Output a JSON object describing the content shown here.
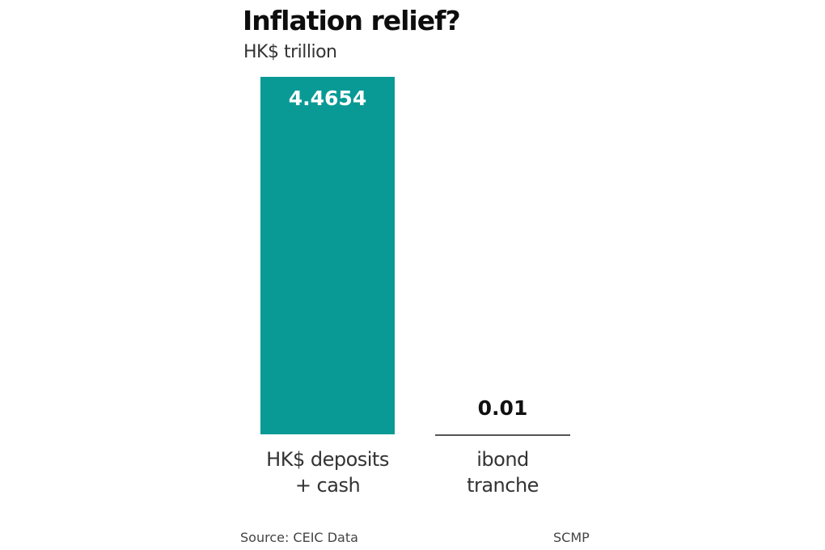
{
  "header": {
    "title": "Inflation relief?",
    "subtitle": "HK$ trillion"
  },
  "footer": {
    "source": "Source: CEIC Data",
    "credit": "SCMP"
  },
  "colors": {
    "bar": "#0a9a96",
    "bar_value_text": "#ffffff",
    "small_bar_line": "#555555"
  },
  "chart_data": {
    "type": "bar",
    "title": "Inflation relief?",
    "subtitle": "HK$ trillion",
    "xlabel": "",
    "ylabel": "HK$ trillion",
    "categories": [
      "HK$ deposits + cash",
      "ibond tranche"
    ],
    "values": [
      4.4654,
      0.01
    ],
    "value_labels": [
      "4.4654",
      "0.01"
    ],
    "grid": false,
    "legend": null,
    "ylim": [
      0,
      4.4654
    ],
    "source": "Source: CEIC Data",
    "credit": "SCMP"
  },
  "labels": {
    "cat1_line1": "HK$ deposits",
    "cat1_line2": "+ cash",
    "cat2_line1": "ibond",
    "cat2_line2": "tranche"
  }
}
